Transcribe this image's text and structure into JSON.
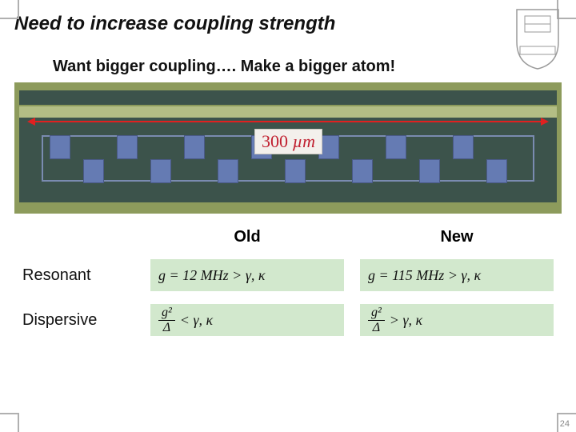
{
  "title": "Need to increase coupling strength",
  "subtitle": "Want bigger coupling…. Make a bigger atom!",
  "slide_number": "24",
  "micrograph": {
    "bg_color": "#8d9b5c",
    "channel_color": "#3c534b",
    "band_color": "#b3be85",
    "finger_color": "#657bb3",
    "arrow_color": "#e02020",
    "scale_label_value": "300",
    "scale_label_unit": "µm",
    "scale_label_color": "#c02030",
    "scale_label_bg": "#f3f0ec",
    "n_fingers": 14
  },
  "columns": {
    "old": "Old",
    "new": "New"
  },
  "rows": {
    "resonant": "Resonant",
    "dispersive": "Dispersive"
  },
  "equations": {
    "resonant_old": {
      "g_text": "g = 12 MHz",
      "rel": ">",
      "rhs": "γ, κ"
    },
    "resonant_new": {
      "g_text": "g = 115 MHz",
      "rel": ">",
      "rhs": "γ, κ"
    },
    "dispersive_old": {
      "num": "g²",
      "den": "Δ",
      "rel": "<",
      "rhs": "γ, κ"
    },
    "dispersive_new": {
      "num": "g²",
      "den": "Δ",
      "rel": ">",
      "rhs": "γ, κ"
    }
  },
  "eq_bg": "#d2e8cd",
  "shield_stroke": "#9a9a9a"
}
